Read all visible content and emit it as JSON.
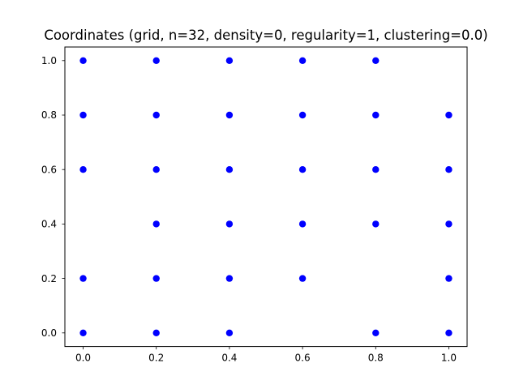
{
  "chart_data": {
    "type": "scatter",
    "title": "Coordinates (grid, n=32, density=0, regularity=1, clustering=0.0)",
    "xlabel": "",
    "ylabel": "",
    "xlim": [
      -0.05,
      1.05
    ],
    "ylim": [
      -0.05,
      1.05
    ],
    "xticks": [
      0.0,
      0.2,
      0.4,
      0.6,
      0.8,
      1.0
    ],
    "yticks": [
      0.0,
      0.2,
      0.4,
      0.6,
      0.8,
      1.0
    ],
    "xtick_labels": [
      "0.0",
      "0.2",
      "0.4",
      "0.6",
      "0.8",
      "1.0"
    ],
    "ytick_labels": [
      "0.0",
      "0.2",
      "0.4",
      "0.6",
      "0.8",
      "1.0"
    ],
    "grid": false,
    "marker_color": "#0000ff",
    "points": [
      {
        "x": 0.0,
        "y": 1.0
      },
      {
        "x": 0.2,
        "y": 1.0
      },
      {
        "x": 0.4,
        "y": 1.0
      },
      {
        "x": 0.6,
        "y": 1.0
      },
      {
        "x": 0.8,
        "y": 1.0
      },
      {
        "x": 0.0,
        "y": 0.8
      },
      {
        "x": 0.2,
        "y": 0.8
      },
      {
        "x": 0.4,
        "y": 0.8
      },
      {
        "x": 0.6,
        "y": 0.8
      },
      {
        "x": 0.8,
        "y": 0.8
      },
      {
        "x": 1.0,
        "y": 0.8
      },
      {
        "x": 0.0,
        "y": 0.6
      },
      {
        "x": 0.2,
        "y": 0.6
      },
      {
        "x": 0.4,
        "y": 0.6
      },
      {
        "x": 0.6,
        "y": 0.6
      },
      {
        "x": 0.8,
        "y": 0.6
      },
      {
        "x": 1.0,
        "y": 0.6
      },
      {
        "x": 0.2,
        "y": 0.4
      },
      {
        "x": 0.4,
        "y": 0.4
      },
      {
        "x": 0.6,
        "y": 0.4
      },
      {
        "x": 0.8,
        "y": 0.4
      },
      {
        "x": 1.0,
        "y": 0.4
      },
      {
        "x": 0.0,
        "y": 0.2
      },
      {
        "x": 0.2,
        "y": 0.2
      },
      {
        "x": 0.4,
        "y": 0.2
      },
      {
        "x": 0.6,
        "y": 0.2
      },
      {
        "x": 1.0,
        "y": 0.2
      },
      {
        "x": 0.0,
        "y": 0.0
      },
      {
        "x": 0.2,
        "y": 0.0
      },
      {
        "x": 0.4,
        "y": 0.0
      },
      {
        "x": 0.8,
        "y": 0.0
      },
      {
        "x": 1.0,
        "y": 0.0
      }
    ]
  }
}
